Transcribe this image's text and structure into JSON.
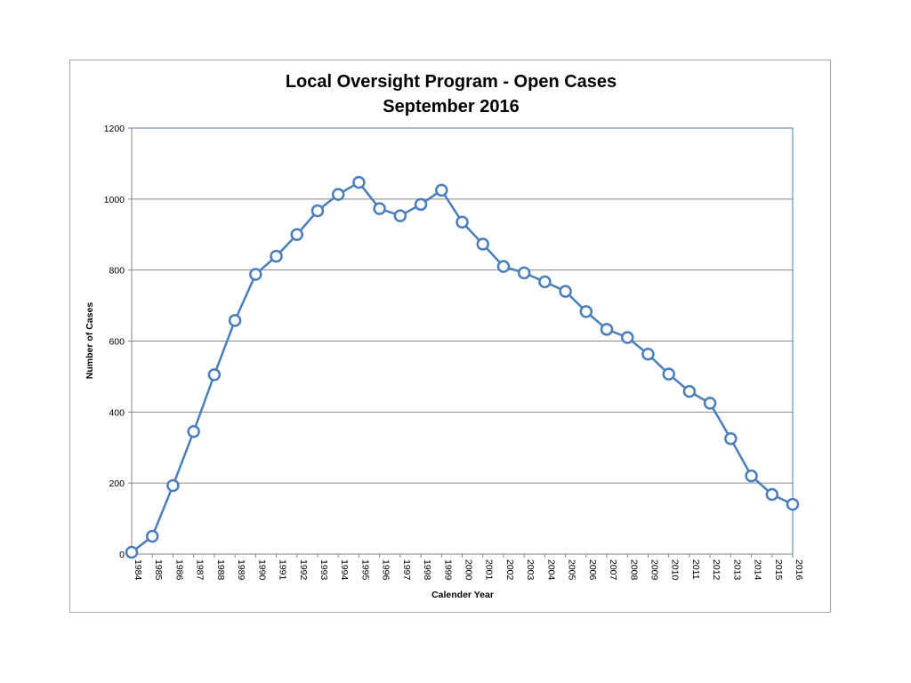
{
  "chart_data": {
    "type": "line",
    "title": "Local Oversight Program - Open Cases",
    "subtitle": "September 2016",
    "xlabel": "Calender Year",
    "ylabel": "Number of Cases",
    "ylim": [
      0,
      1200
    ],
    "yticks": [
      0,
      200,
      400,
      600,
      800,
      1000,
      1200
    ],
    "grid": true,
    "categories": [
      "1984",
      "1985",
      "1986",
      "1987",
      "1988",
      "1989",
      "1990",
      "1991",
      "1992",
      "1993",
      "1994",
      "1995",
      "1996",
      "1997",
      "1998",
      "1999",
      "2000",
      "2001",
      "2002",
      "2003",
      "2004",
      "2005",
      "2006",
      "2007",
      "2008",
      "2009",
      "2010",
      "2011",
      "2012",
      "2013",
      "2014",
      "2015",
      "2016"
    ],
    "series": [
      {
        "name": "Open Cases",
        "color": "#4a7ebb",
        "values": [
          5,
          50,
          193,
          345,
          505,
          658,
          788,
          839,
          900,
          967,
          1013,
          1047,
          973,
          953,
          985,
          1025,
          935,
          873,
          810,
          792,
          767,
          740,
          683,
          633,
          610,
          563,
          507,
          458,
          425,
          325,
          220,
          168,
          140
        ]
      }
    ]
  }
}
